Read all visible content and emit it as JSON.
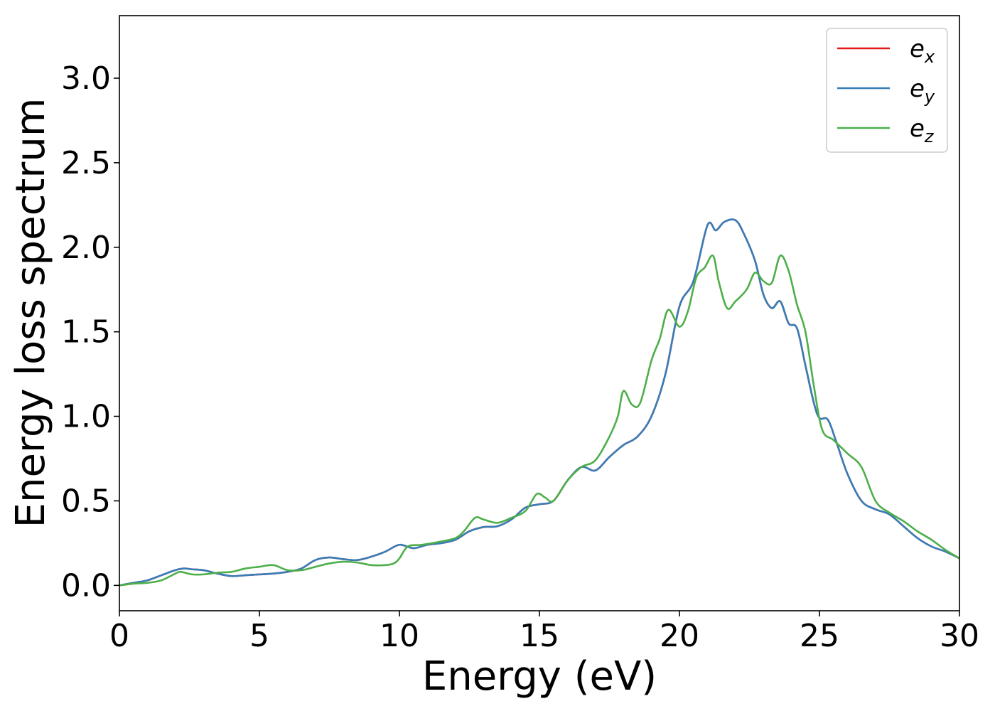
{
  "chart_data": {
    "type": "line",
    "title": "",
    "xlabel": "Energy (eV)",
    "ylabel": "Energy loss spectrum",
    "xlim": [
      0,
      30
    ],
    "ylim": [
      -0.15,
      3.37
    ],
    "xticks": [
      0,
      5,
      10,
      15,
      20,
      25,
      30
    ],
    "xtick_labels": [
      "0",
      "5",
      "10",
      "15",
      "20",
      "25",
      "30"
    ],
    "yticks": [
      0.0,
      0.5,
      1.0,
      1.5,
      2.0,
      2.5,
      3.0
    ],
    "ytick_labels": [
      "0.0",
      "0.5",
      "1.0",
      "1.5",
      "2.0",
      "2.5",
      "3.0"
    ],
    "grid": false,
    "legend_position": "top-right",
    "series": [
      {
        "name": "e",
        "subscript": "x",
        "color": "#e41a1c",
        "x": [
          0,
          0.5,
          1,
          1.5,
          2,
          2.3,
          2.6,
          3,
          3.5,
          4,
          4.5,
          5,
          5.5,
          6,
          6.5,
          7,
          7.5,
          8,
          8.5,
          9,
          9.5,
          10,
          10.5,
          11,
          11.5,
          12,
          12.5,
          13,
          13.5,
          14,
          14.5,
          15,
          15.5,
          16,
          16.5,
          17,
          17.5,
          18,
          18.5,
          19,
          19.5,
          20,
          20.5,
          21,
          21.3,
          21.6,
          22,
          22.3,
          22.7,
          23,
          23.3,
          23.6,
          23.9,
          24.2,
          24.5,
          24.8,
          25,
          25.3,
          25.6,
          26,
          26.5,
          27,
          27.5,
          28,
          28.5,
          29,
          29.5,
          30
        ],
        "y": [
          0,
          0.015,
          0.03,
          0.06,
          0.09,
          0.1,
          0.095,
          0.09,
          0.07,
          0.055,
          0.06,
          0.065,
          0.07,
          0.08,
          0.1,
          0.15,
          0.165,
          0.155,
          0.15,
          0.17,
          0.2,
          0.24,
          0.22,
          0.24,
          0.25,
          0.27,
          0.32,
          0.345,
          0.35,
          0.39,
          0.46,
          0.48,
          0.5,
          0.62,
          0.7,
          0.68,
          0.76,
          0.83,
          0.88,
          1.0,
          1.25,
          1.65,
          1.8,
          2.13,
          2.1,
          2.15,
          2.16,
          2.08,
          1.92,
          1.72,
          1.64,
          1.68,
          1.55,
          1.52,
          1.3,
          1.08,
          0.99,
          0.98,
          0.85,
          0.66,
          0.5,
          0.45,
          0.42,
          0.35,
          0.28,
          0.23,
          0.2,
          0.16
        ]
      },
      {
        "name": "e",
        "subscript": "y",
        "color": "#377eb8",
        "x": [
          0,
          0.5,
          1,
          1.5,
          2,
          2.3,
          2.6,
          3,
          3.5,
          4,
          4.5,
          5,
          5.5,
          6,
          6.5,
          7,
          7.5,
          8,
          8.5,
          9,
          9.5,
          10,
          10.5,
          11,
          11.5,
          12,
          12.5,
          13,
          13.5,
          14,
          14.5,
          15,
          15.5,
          16,
          16.5,
          17,
          17.5,
          18,
          18.5,
          19,
          19.5,
          20,
          20.5,
          21,
          21.3,
          21.6,
          22,
          22.3,
          22.7,
          23,
          23.3,
          23.6,
          23.9,
          24.2,
          24.5,
          24.8,
          25,
          25.3,
          25.6,
          26,
          26.5,
          27,
          27.5,
          28,
          28.5,
          29,
          29.5,
          30
        ],
        "y": [
          0,
          0.015,
          0.03,
          0.06,
          0.09,
          0.1,
          0.095,
          0.09,
          0.07,
          0.055,
          0.06,
          0.065,
          0.07,
          0.08,
          0.1,
          0.15,
          0.165,
          0.155,
          0.15,
          0.17,
          0.2,
          0.24,
          0.22,
          0.24,
          0.25,
          0.27,
          0.32,
          0.345,
          0.35,
          0.39,
          0.46,
          0.48,
          0.5,
          0.62,
          0.7,
          0.68,
          0.76,
          0.83,
          0.88,
          1.0,
          1.25,
          1.65,
          1.8,
          2.13,
          2.1,
          2.15,
          2.16,
          2.08,
          1.92,
          1.72,
          1.64,
          1.68,
          1.55,
          1.52,
          1.3,
          1.08,
          0.99,
          0.98,
          0.85,
          0.66,
          0.5,
          0.45,
          0.42,
          0.35,
          0.28,
          0.23,
          0.2,
          0.16
        ]
      },
      {
        "name": "e",
        "subscript": "z",
        "color": "#4daf4a",
        "x": [
          0,
          0.5,
          1,
          1.5,
          2,
          2.2,
          2.6,
          3,
          3.5,
          4,
          4.5,
          5,
          5.5,
          6,
          6.5,
          7,
          7.5,
          8,
          8.5,
          9,
          9.5,
          9.8,
          10,
          10.3,
          10.8,
          11.5,
          12,
          12.3,
          12.7,
          13,
          13.5,
          14,
          14.5,
          14.9,
          15.2,
          15.5,
          16,
          16.5,
          17,
          17.5,
          17.8,
          18,
          18.3,
          18.6,
          19,
          19.3,
          19.6,
          20,
          20.3,
          20.6,
          20.9,
          21.2,
          21.4,
          21.7,
          22,
          22.4,
          22.7,
          23,
          23.3,
          23.6,
          23.9,
          24.2,
          24.5,
          24.8,
          25.1,
          25.5,
          26,
          26.5,
          27,
          27.5,
          28,
          28.5,
          29,
          29.5,
          30
        ],
        "y": [
          0,
          0.01,
          0.015,
          0.03,
          0.07,
          0.08,
          0.065,
          0.065,
          0.075,
          0.08,
          0.1,
          0.11,
          0.12,
          0.09,
          0.09,
          0.11,
          0.13,
          0.14,
          0.135,
          0.12,
          0.12,
          0.13,
          0.16,
          0.23,
          0.24,
          0.26,
          0.28,
          0.32,
          0.4,
          0.39,
          0.37,
          0.4,
          0.44,
          0.54,
          0.52,
          0.5,
          0.62,
          0.7,
          0.74,
          0.88,
          1.0,
          1.15,
          1.07,
          1.08,
          1.33,
          1.46,
          1.63,
          1.53,
          1.62,
          1.82,
          1.88,
          1.95,
          1.8,
          1.64,
          1.68,
          1.75,
          1.85,
          1.8,
          1.79,
          1.95,
          1.86,
          1.66,
          1.5,
          1.18,
          0.92,
          0.86,
          0.78,
          0.7,
          0.5,
          0.43,
          0.38,
          0.32,
          0.27,
          0.21,
          0.16
        ]
      }
    ]
  }
}
